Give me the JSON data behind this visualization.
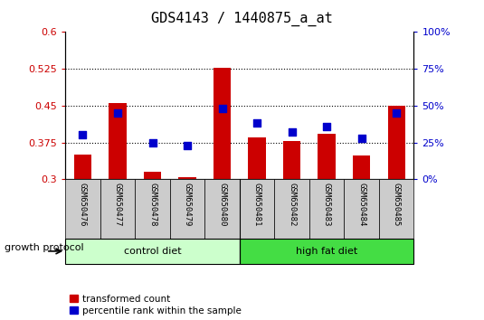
{
  "title": "GDS4143 / 1440875_a_at",
  "samples": [
    "GSM650476",
    "GSM650477",
    "GSM650478",
    "GSM650479",
    "GSM650480",
    "GSM650481",
    "GSM650482",
    "GSM650483",
    "GSM650484",
    "GSM650485"
  ],
  "red_values": [
    0.35,
    0.455,
    0.315,
    0.305,
    0.527,
    0.385,
    0.377,
    0.392,
    0.348,
    0.45
  ],
  "blue_percentiles": [
    30,
    45,
    25,
    23,
    48,
    38,
    32,
    36,
    28,
    45
  ],
  "bar_bottom": 0.3,
  "ylim_left": [
    0.3,
    0.6
  ],
  "ylim_right": [
    0,
    100
  ],
  "yticks_left": [
    0.3,
    0.375,
    0.45,
    0.525,
    0.6
  ],
  "yticks_right": [
    0,
    25,
    50,
    75,
    100
  ],
  "ytick_labels_left": [
    "0.3",
    "0.375",
    "0.45",
    "0.525",
    "0.6"
  ],
  "ytick_labels_right": [
    "0%",
    "25%",
    "50%",
    "75%",
    "100%"
  ],
  "groups": [
    {
      "label": "control diet",
      "color": "#ccffcc",
      "start": 0,
      "end": 5
    },
    {
      "label": "high fat diet",
      "color": "#44dd44",
      "start": 5,
      "end": 10
    }
  ],
  "group_label": "growth protocol",
  "legend_red": "transformed count",
  "legend_blue": "percentile rank within the sample",
  "red_color": "#cc0000",
  "blue_color": "#0000cc",
  "bar_width": 0.5,
  "grid_linestyle": ":",
  "grid_linewidth": 0.8,
  "left_tick_color": "#cc0000",
  "right_tick_color": "#0000cc",
  "sample_box_color": "#cccccc",
  "title_fontsize": 11,
  "grid_yticks": [
    0.375,
    0.45,
    0.525
  ]
}
